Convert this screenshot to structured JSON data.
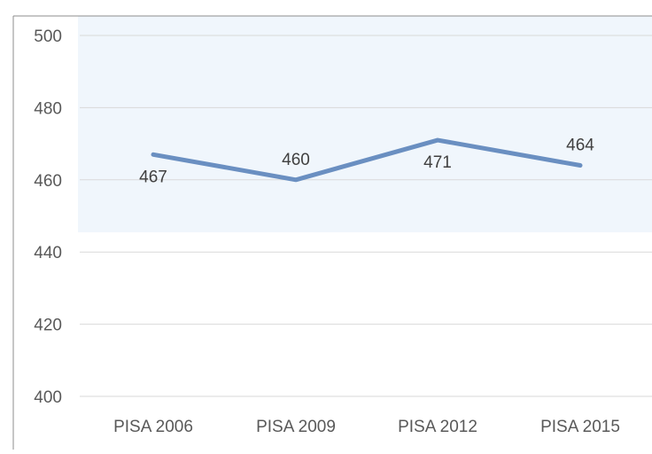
{
  "colors": {
    "line": "#6a8fc1",
    "grid": "#d9d9d9",
    "band": "#f0f6fc",
    "frame": "#8c8c8c",
    "text": "#595959"
  },
  "chart_data": {
    "type": "line",
    "title": "",
    "xlabel": "",
    "ylabel": "",
    "categories": [
      "PISA 2006",
      "PISA 2009",
      "PISA 2012",
      "PISA 2015"
    ],
    "series": [
      {
        "values": [
          467,
          460,
          471,
          464
        ]
      }
    ],
    "data_labels": [
      "467",
      "460",
      "471",
      "464"
    ],
    "data_label_position": [
      "below",
      "above",
      "below",
      "above"
    ],
    "ylim": [
      400,
      500
    ],
    "yticks": [
      400,
      420,
      440,
      460,
      480,
      500
    ],
    "ytick_labels": [
      "400",
      "420",
      "440",
      "460",
      "480",
      "500"
    ],
    "grid": true,
    "legend": "none"
  }
}
